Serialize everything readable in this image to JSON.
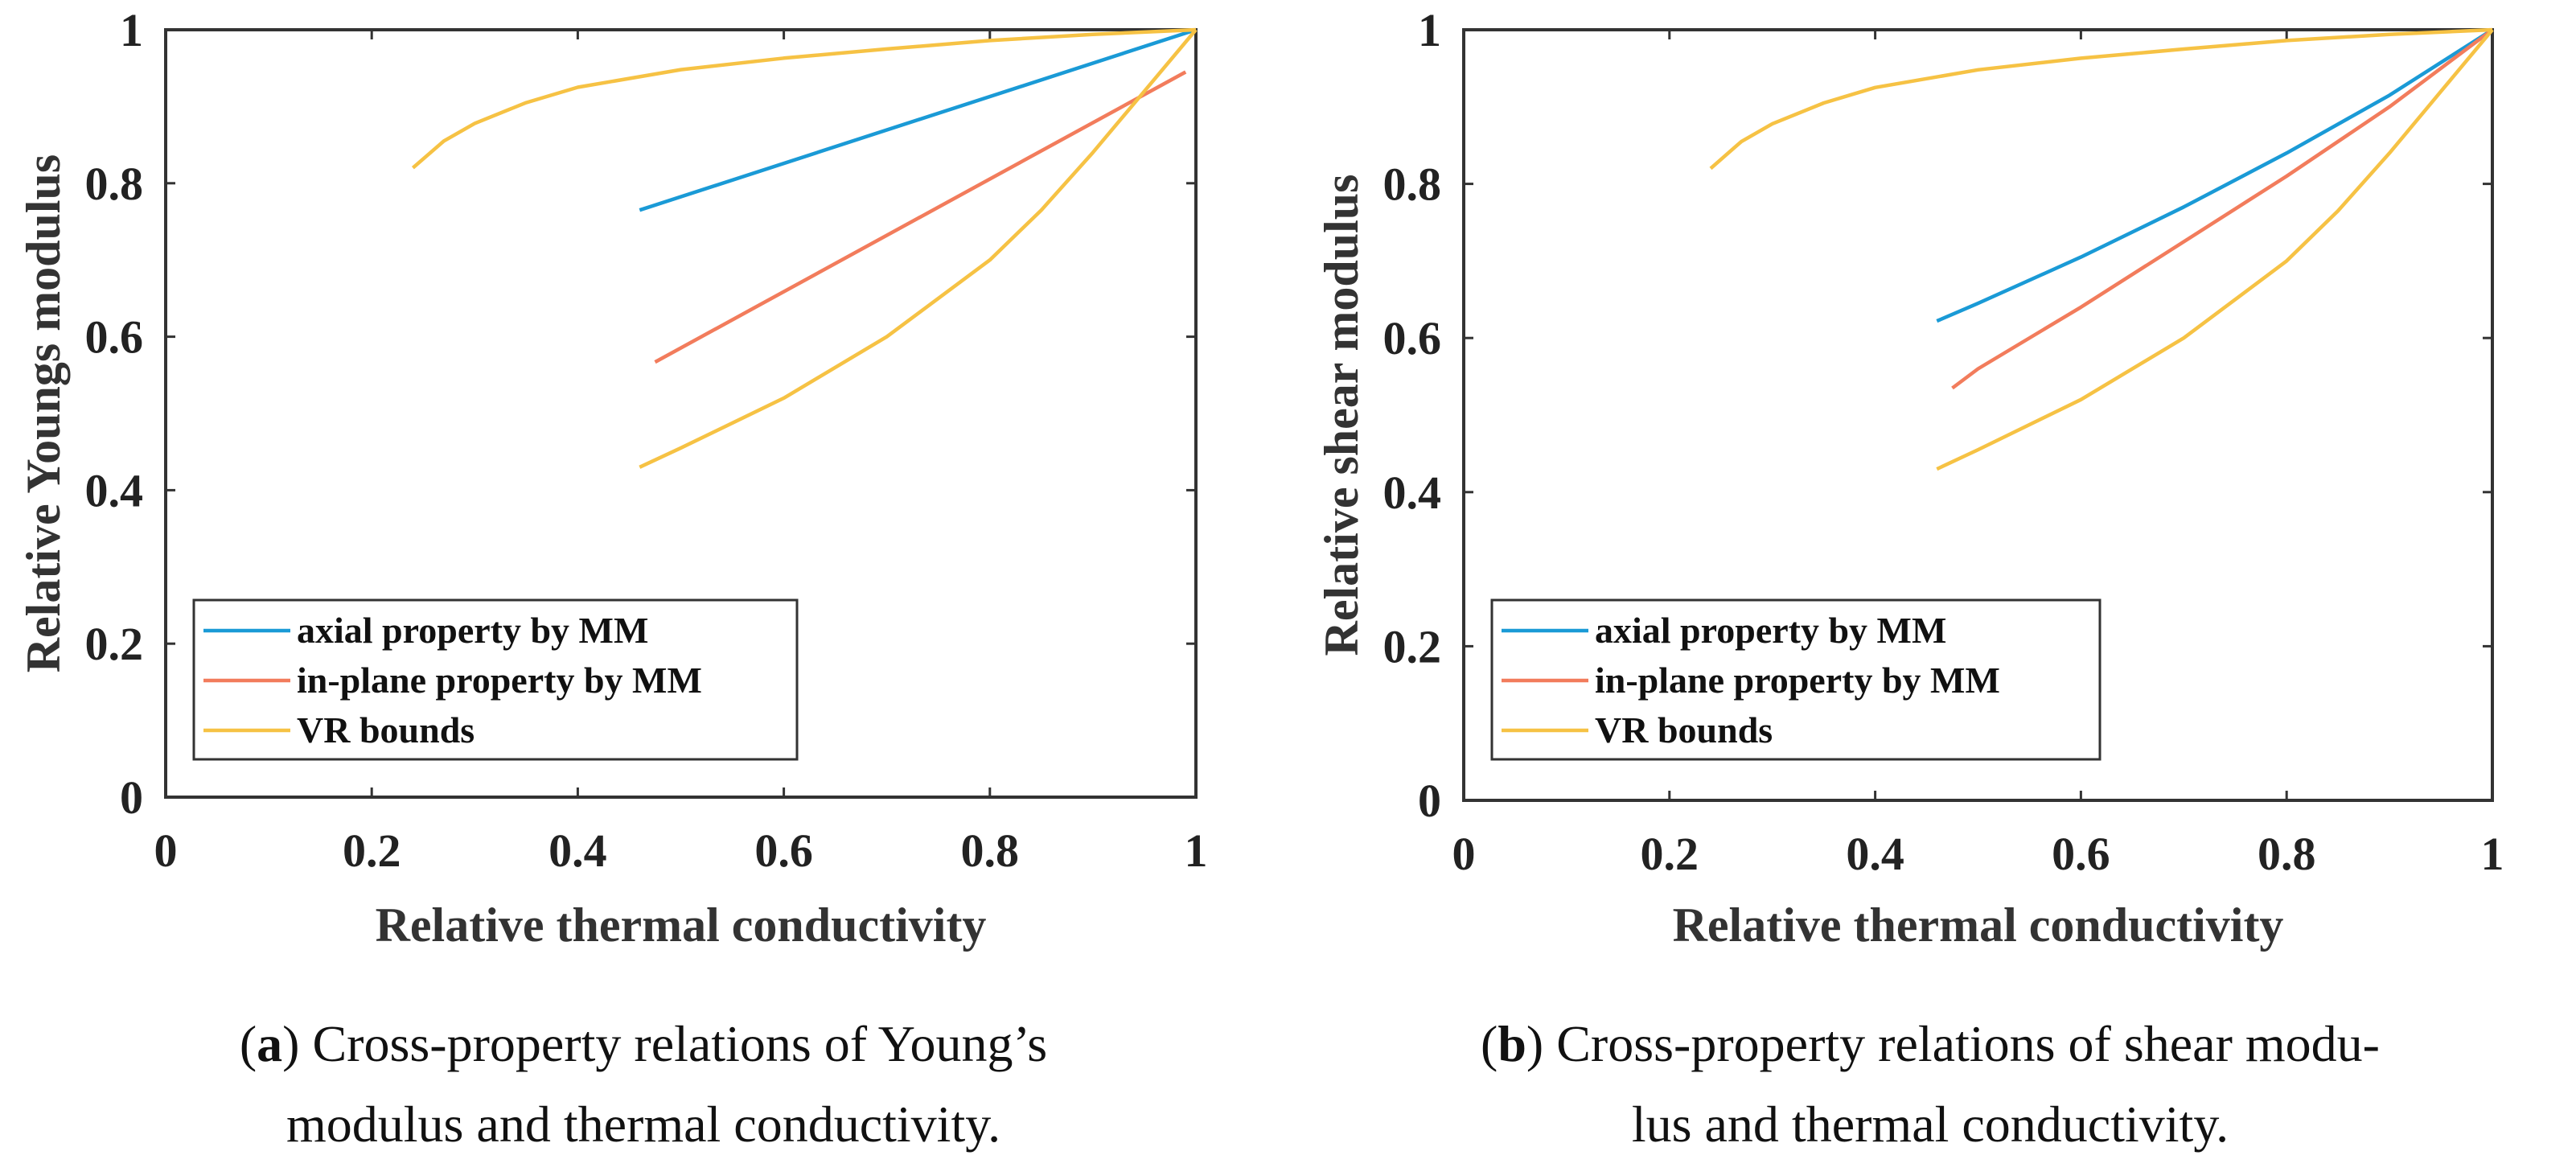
{
  "chart_data": [
    {
      "type": "line",
      "panel": "a",
      "xlabel": "Relative thermal conductivity",
      "ylabel": "Relative Youngs modulus",
      "xlim": [
        0,
        1
      ],
      "ylim": [
        0,
        1
      ],
      "xticks": [
        "0",
        "0.2",
        "0.4",
        "0.6",
        "0.8",
        "1"
      ],
      "yticks": [
        "0",
        "0.2",
        "0.4",
        "0.6",
        "0.8",
        "1"
      ],
      "legend_position": "bottom-left",
      "series": [
        {
          "name": "axial property by MM",
          "color": "#1a9ad6",
          "x": [
            0.46,
            1.0
          ],
          "y": [
            0.765,
            1.0
          ]
        },
        {
          "name": "in-plane property by MM",
          "color": "#f27c5c",
          "x": [
            0.475,
            0.99
          ],
          "y": [
            0.567,
            0.945
          ]
        },
        {
          "name": "VR bounds",
          "color": "#f6c244",
          "x": [
            0.24,
            0.27,
            0.3,
            0.35,
            0.4,
            0.5,
            0.6,
            0.7,
            0.8,
            0.9,
            1.0
          ],
          "y": [
            0.82,
            0.855,
            0.878,
            0.905,
            0.925,
            0.948,
            0.963,
            0.975,
            0.986,
            0.994,
            1.0
          ]
        },
        {
          "name": "VR bounds lower",
          "legend": false,
          "color": "#f6c244",
          "x": [
            0.46,
            0.5,
            0.6,
            0.7,
            0.8,
            0.85,
            0.9,
            0.95,
            1.0
          ],
          "y": [
            0.43,
            0.455,
            0.52,
            0.6,
            0.7,
            0.765,
            0.84,
            0.92,
            1.0
          ]
        }
      ]
    },
    {
      "type": "line",
      "panel": "b",
      "xlabel": "Relative thermal conductivity",
      "ylabel": "Relative shear modulus",
      "xlim": [
        0,
        1
      ],
      "ylim": [
        0,
        1
      ],
      "xticks": [
        "0",
        "0.2",
        "0.4",
        "0.6",
        "0.8",
        "1"
      ],
      "yticks": [
        "0",
        "0.2",
        "0.4",
        "0.6",
        "0.8",
        "1"
      ],
      "legend_position": "bottom-left",
      "series": [
        {
          "name": "axial property by MM",
          "color": "#1a9ad6",
          "x": [
            0.46,
            0.5,
            0.6,
            0.7,
            0.8,
            0.9,
            1.0
          ],
          "y": [
            0.622,
            0.645,
            0.705,
            0.77,
            0.84,
            0.915,
            1.0
          ]
        },
        {
          "name": "in-plane property by MM",
          "color": "#f27c5c",
          "x": [
            0.475,
            0.5,
            0.6,
            0.7,
            0.8,
            0.9,
            1.0
          ],
          "y": [
            0.535,
            0.56,
            0.64,
            0.725,
            0.81,
            0.9,
            1.0
          ]
        },
        {
          "name": "VR bounds",
          "color": "#f6c244",
          "x": [
            0.24,
            0.27,
            0.3,
            0.35,
            0.4,
            0.5,
            0.6,
            0.7,
            0.8,
            0.9,
            1.0
          ],
          "y": [
            0.82,
            0.855,
            0.878,
            0.905,
            0.925,
            0.948,
            0.963,
            0.975,
            0.986,
            0.994,
            1.0
          ]
        },
        {
          "name": "VR bounds lower",
          "legend": false,
          "color": "#f6c244",
          "x": [
            0.46,
            0.5,
            0.6,
            0.7,
            0.8,
            0.85,
            0.9,
            0.95,
            1.0
          ],
          "y": [
            0.43,
            0.455,
            0.52,
            0.6,
            0.7,
            0.765,
            0.84,
            0.92,
            1.0
          ]
        }
      ]
    }
  ],
  "captions": {
    "a": {
      "label": "a",
      "line1": "Cross-property relations of Young’s",
      "line2": "modulus and thermal conductivity."
    },
    "b": {
      "label": "b",
      "line1": "Cross-property relations of shear modu-",
      "line2": "lus and thermal conductivity."
    }
  }
}
